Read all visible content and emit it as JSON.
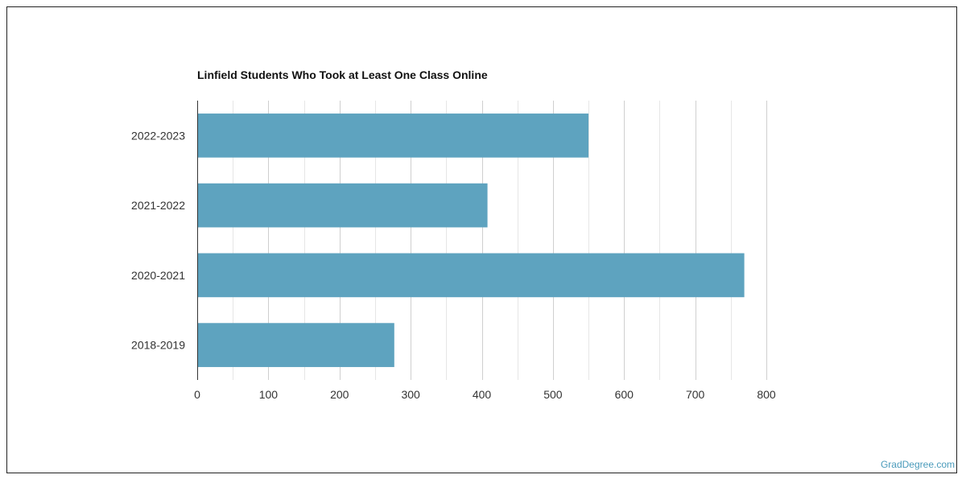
{
  "chart_data": {
    "type": "bar",
    "orientation": "horizontal",
    "title": "Linfield Students Who Took at Least One Class Online",
    "categories": [
      "2022-2023",
      "2021-2022",
      "2020-2021",
      "2018-2019"
    ],
    "values": [
      550,
      408,
      769,
      277
    ],
    "xlim": [
      0,
      800
    ],
    "xticks": [
      "0",
      "100",
      "200",
      "300",
      "400",
      "500",
      "600",
      "700",
      "800"
    ],
    "grid": true,
    "bar_color": "#5ea3bf"
  },
  "source_label": "GradDegree.com"
}
